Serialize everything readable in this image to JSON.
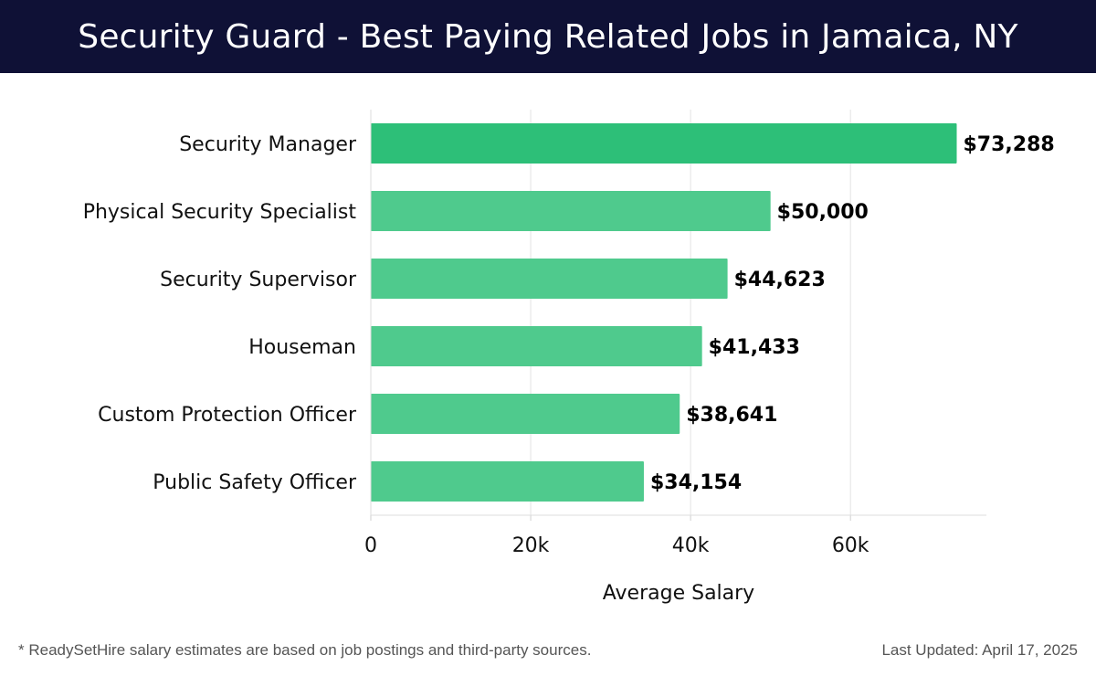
{
  "header": {
    "title": "Security Guard - Best Paying Related Jobs in Jamaica, NY"
  },
  "chart_data": {
    "type": "bar",
    "orientation": "horizontal",
    "categories": [
      "Security Manager",
      "Physical Security Specialist",
      "Security Supervisor",
      "Houseman",
      "Custom Protection Officer",
      "Public Safety Officer"
    ],
    "values": [
      73288,
      50000,
      44623,
      41433,
      38641,
      34154
    ],
    "value_labels": [
      "$73,288",
      "$50,000",
      "$44,623",
      "$41,433",
      "$38,641",
      "$34,154"
    ],
    "xlabel": "Average Salary",
    "ylabel": "",
    "xlim": [
      0,
      77000
    ],
    "xticks": [
      0,
      20000,
      40000,
      60000
    ],
    "xtick_labels": [
      "0",
      "20k",
      "40k",
      "60k"
    ],
    "grid": true,
    "colors": {
      "highlight": "#2dbf78",
      "bar": "#4fca8d",
      "header_bg": "#0f1136"
    }
  },
  "footer": {
    "note": "* ReadySetHire salary estimates are based on job postings and third-party sources.",
    "updated": "Last Updated: April 17, 2025"
  }
}
